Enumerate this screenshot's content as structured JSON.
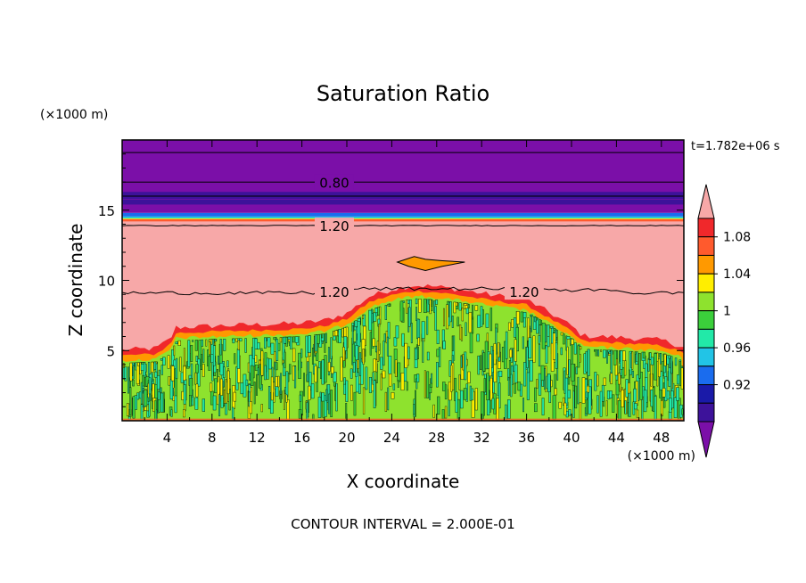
{
  "chart_data": {
    "type": "heatmap",
    "title": "Saturation Ratio",
    "time_label": "t=1.782e+06 s",
    "xlabel": "X coordinate",
    "ylabel": "Z coordinate",
    "x_unit": "(×1000 m)",
    "y_unit": "(×1000 m)",
    "xlim": [
      0,
      50
    ],
    "ylim": [
      0,
      20
    ],
    "x_ticks": [
      4,
      8,
      12,
      16,
      20,
      24,
      28,
      32,
      36,
      40,
      44,
      48
    ],
    "y_ticks": [
      5,
      10,
      15
    ],
    "footer": "CONTOUR INTERVAL = 2.000E-01",
    "contour_interval": 0.2,
    "contour_labels": [
      {
        "text": "0.80",
        "x": 17.3,
        "z": 17.0
      },
      {
        "text": "1.20",
        "x": 17.3,
        "z": 13.9
      },
      {
        "text": "1.20",
        "x": 17.3,
        "z": 9.2
      },
      {
        "text": "1.20",
        "x": 34.2,
        "z": 9.2
      }
    ],
    "regions": [
      {
        "value": "<0.90",
        "color": "#7b0fa8",
        "z_range": [
          14.8,
          20
        ]
      },
      {
        "value": "0.90-0.92",
        "color": "#3d129a",
        "z_range": [
          15.8,
          16.3
        ]
      },
      {
        "value": ">1.10",
        "color": "#f7a8a8",
        "z_range": [
          6,
          14.2
        ]
      },
      {
        "value": "0.98-1.02",
        "color": "#77dd33",
        "z_range": [
          0,
          7.5
        ]
      }
    ],
    "colorbar": {
      "labels": [
        "1.08",
        "1.04",
        "1",
        "0.96",
        "0.92"
      ],
      "levels": [
        {
          "value": ">1.10",
          "color": "#f7a8a8"
        },
        {
          "value": "1.08-1.10",
          "color": "#f0282b"
        },
        {
          "value": "1.06-1.08",
          "color": "#ff5a2d"
        },
        {
          "value": "1.04-1.06",
          "color": "#ff9900"
        },
        {
          "value": "1.02-1.04",
          "color": "#ffee00"
        },
        {
          "value": "1.00-1.02",
          "color": "#8ee22e"
        },
        {
          "value": "0.98-1.00",
          "color": "#3bcf3b"
        },
        {
          "value": "0.96-0.98",
          "color": "#22e9a8"
        },
        {
          "value": "0.94-0.96",
          "color": "#22c4e6"
        },
        {
          "value": "0.92-0.94",
          "color": "#1a6cee"
        },
        {
          "value": "0.90-0.92",
          "color": "#1a1aa8"
        },
        {
          "value": "0.88-0.90",
          "color": "#3d129a"
        },
        {
          "value": "<0.88",
          "color": "#7b0fa8"
        }
      ]
    }
  }
}
